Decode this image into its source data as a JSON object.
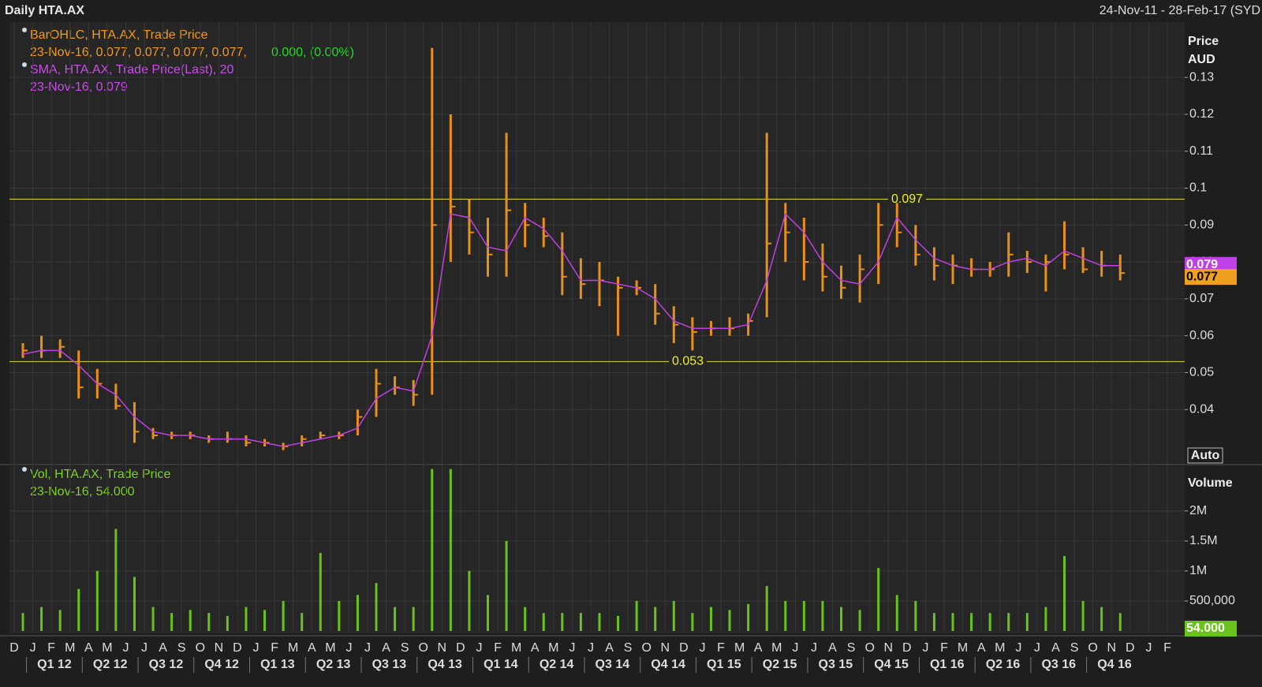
{
  "chart_data": {
    "type": "ohlc",
    "title": "Daily HTA.AX",
    "date_range": "24-Nov-11 - 28-Feb-17 (SYD",
    "legend": {
      "ohlc_name": "BarOHLC, HTA.AX, Trade Price",
      "ohlc_values": "23-Nov-16, 0.077, 0.077, 0.077, 0.077,",
      "ohlc_change": "0.000, (0.00%)",
      "sma_name": "SMA, HTA.AX, Trade Price(Last),  20",
      "sma_values": "23-Nov-16, 0.079",
      "vol_name": "Vol, HTA.AX, Trade Price",
      "vol_values": "23-Nov-16, 54.000"
    },
    "price_axis_label": "Price",
    "currency": "AUD",
    "volume_axis_label": "Volume",
    "auto_label": "Auto",
    "last_sma": 0.079,
    "last_price": 0.077,
    "last_volume": "54.000",
    "hlines": [
      0.097,
      0.053
    ],
    "categories": [
      "D",
      "J",
      "F",
      "M",
      "A",
      "M",
      "J",
      "J",
      "A",
      "S",
      "O",
      "N",
      "D",
      "J",
      "F",
      "M",
      "A",
      "M",
      "J",
      "J",
      "A",
      "S",
      "O",
      "N",
      "D",
      "J",
      "F",
      "M",
      "A",
      "M",
      "J",
      "J",
      "A",
      "S",
      "O",
      "N",
      "D",
      "J",
      "F",
      "M",
      "A",
      "M",
      "J",
      "J",
      "A",
      "S",
      "O",
      "N",
      "D",
      "J",
      "F",
      "M",
      "A",
      "M",
      "J",
      "J",
      "A",
      "S",
      "O",
      "N",
      "D",
      "J",
      "F"
    ],
    "quarters": [
      "Q1 12",
      "Q2 12",
      "Q3 12",
      "Q4 12",
      "Q1 13",
      "Q2 13",
      "Q3 13",
      "Q4 13",
      "Q1 14",
      "Q2 14",
      "Q3 14",
      "Q4 14",
      "Q1 15",
      "Q2 15",
      "Q3 15",
      "Q4 15",
      "Q1 16",
      "Q2 16",
      "Q3 16",
      "Q4 16"
    ],
    "ohlc": {
      "color": "#e8901a",
      "high": [
        0.058,
        0.06,
        0.059,
        0.056,
        0.051,
        0.047,
        0.042,
        0.035,
        0.034,
        0.034,
        0.033,
        0.034,
        0.033,
        0.032,
        0.031,
        0.033,
        0.034,
        0.034,
        0.04,
        0.051,
        0.049,
        0.048,
        0.138,
        0.12,
        0.097,
        0.092,
        0.115,
        0.096,
        0.092,
        0.088,
        0.081,
        0.08,
        0.076,
        0.075,
        0.074,
        0.068,
        0.065,
        0.064,
        0.065,
        0.066,
        0.115,
        0.096,
        0.092,
        0.085,
        0.079,
        0.082,
        0.096,
        0.096,
        0.09,
        0.084,
        0.082,
        0.081,
        0.08,
        0.088,
        0.083,
        0.082,
        0.091,
        0.084,
        0.083,
        0.082,
        null,
        null,
        null
      ],
      "low": [
        0.054,
        0.054,
        0.054,
        0.043,
        0.043,
        0.04,
        0.031,
        0.032,
        0.032,
        0.032,
        0.031,
        0.031,
        0.03,
        0.03,
        0.029,
        0.03,
        0.032,
        0.032,
        0.033,
        0.038,
        0.044,
        0.041,
        0.044,
        0.08,
        0.082,
        0.076,
        0.076,
        0.084,
        0.084,
        0.071,
        0.07,
        0.068,
        0.06,
        0.071,
        0.063,
        0.058,
        0.056,
        0.06,
        0.06,
        0.06,
        0.065,
        0.08,
        0.075,
        0.072,
        0.07,
        0.069,
        0.074,
        0.084,
        0.079,
        0.075,
        0.074,
        0.076,
        0.076,
        0.076,
        0.077,
        0.072,
        0.078,
        0.077,
        0.076,
        0.075,
        null,
        null,
        null
      ],
      "close": [
        0.056,
        0.056,
        0.057,
        0.046,
        0.047,
        0.041,
        0.034,
        0.033,
        0.033,
        0.033,
        0.032,
        0.032,
        0.031,
        0.031,
        0.03,
        0.032,
        0.033,
        0.033,
        0.038,
        0.047,
        0.046,
        0.044,
        0.09,
        0.095,
        0.088,
        0.082,
        0.094,
        0.09,
        0.087,
        0.076,
        0.074,
        0.075,
        0.073,
        0.073,
        0.066,
        0.063,
        0.061,
        0.062,
        0.062,
        0.064,
        0.085,
        0.088,
        0.08,
        0.076,
        0.073,
        0.078,
        0.09,
        0.088,
        0.082,
        0.079,
        0.079,
        0.078,
        0.078,
        0.082,
        0.08,
        0.08,
        0.082,
        0.078,
        0.079,
        0.077,
        null,
        null,
        null
      ]
    },
    "sma": {
      "color": "#c040e0",
      "values": [
        0.055,
        0.056,
        0.056,
        0.052,
        0.047,
        0.044,
        0.038,
        0.034,
        0.033,
        0.033,
        0.032,
        0.032,
        0.032,
        0.031,
        0.03,
        0.031,
        0.032,
        0.033,
        0.035,
        0.043,
        0.046,
        0.045,
        0.06,
        0.093,
        0.092,
        0.084,
        0.083,
        0.092,
        0.089,
        0.083,
        0.075,
        0.075,
        0.074,
        0.073,
        0.07,
        0.064,
        0.062,
        0.062,
        0.062,
        0.063,
        0.075,
        0.093,
        0.088,
        0.08,
        0.075,
        0.074,
        0.08,
        0.092,
        0.086,
        0.081,
        0.079,
        0.078,
        0.078,
        0.08,
        0.081,
        0.079,
        0.083,
        0.081,
        0.079,
        0.079,
        null,
        null,
        null
      ]
    },
    "volume": {
      "color": "#6ac31a",
      "values": [
        300000,
        400000,
        350000,
        700000,
        1000000,
        1700000,
        900000,
        400000,
        300000,
        350000,
        300000,
        250000,
        400000,
        350000,
        500000,
        300000,
        1300000,
        500000,
        600000,
        800000,
        400000,
        400000,
        2700000,
        2700000,
        1000000,
        600000,
        1500000,
        400000,
        300000,
        300000,
        300000,
        300000,
        250000,
        500000,
        400000,
        500000,
        300000,
        400000,
        350000,
        450000,
        750000,
        500000,
        500000,
        500000,
        400000,
        350000,
        1050000,
        600000,
        500000,
        300000,
        300000,
        300000,
        300000,
        300000,
        300000,
        400000,
        1250000,
        500000,
        400000,
        300000,
        null,
        null,
        null
      ]
    },
    "ylim": [
      0.0253,
      0.145
    ],
    "yticks": [
      0.04,
      0.05,
      0.06,
      0.07,
      0.08,
      0.09,
      0.1,
      0.11,
      0.12,
      0.13
    ],
    "y2lim": [
      0,
      2760000
    ],
    "y2ticks": [
      {
        "value": 500000,
        "label": "500,000"
      },
      {
        "value": 1000000,
        "label": "1M"
      },
      {
        "value": 1500000,
        "label": "1.5M"
      },
      {
        "value": 2000000,
        "label": "2M"
      }
    ],
    "grid": true
  }
}
